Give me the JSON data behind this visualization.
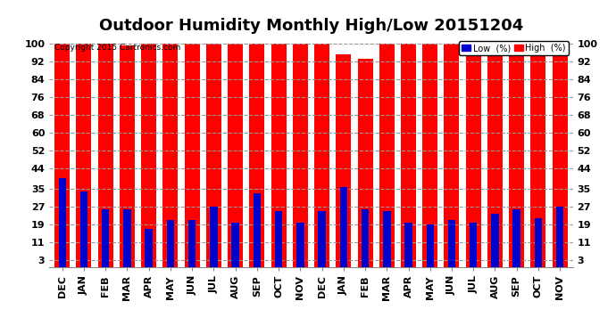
{
  "title": "Outdoor Humidity Monthly High/Low 20151204",
  "copyright": "Copyright 2015 Cartronics.com",
  "categories": [
    "DEC",
    "JAN",
    "FEB",
    "MAR",
    "APR",
    "MAY",
    "JUN",
    "JUL",
    "AUG",
    "SEP",
    "OCT",
    "NOV",
    "DEC",
    "JAN",
    "FEB",
    "MAR",
    "APR",
    "MAY",
    "JUN",
    "JUL",
    "AUG",
    "SEP",
    "OCT",
    "NOV"
  ],
  "high_values": [
    100,
    100,
    100,
    99,
    100,
    100,
    100,
    100,
    100,
    100,
    100,
    100,
    100,
    95,
    93,
    100,
    100,
    100,
    100,
    100,
    100,
    100,
    100,
    100
  ],
  "low_values": [
    40,
    34,
    26,
    26,
    17,
    21,
    21,
    27,
    20,
    33,
    25,
    20,
    25,
    36,
    26,
    25,
    20,
    19,
    21,
    20,
    24,
    26,
    22,
    27
  ],
  "high_color": "#ff0000",
  "low_color": "#0000cc",
  "bg_color": "#ffffff",
  "plot_bg_color": "#ffffff",
  "grid_color": "#999999",
  "yticks": [
    3,
    11,
    19,
    27,
    35,
    44,
    52,
    60,
    68,
    76,
    84,
    92,
    100
  ],
  "ylim": [
    0,
    103
  ],
  "title_fontsize": 13,
  "tick_fontsize": 8,
  "legend_label_low": "Low  (%)",
  "legend_label_high": "High  (%)"
}
